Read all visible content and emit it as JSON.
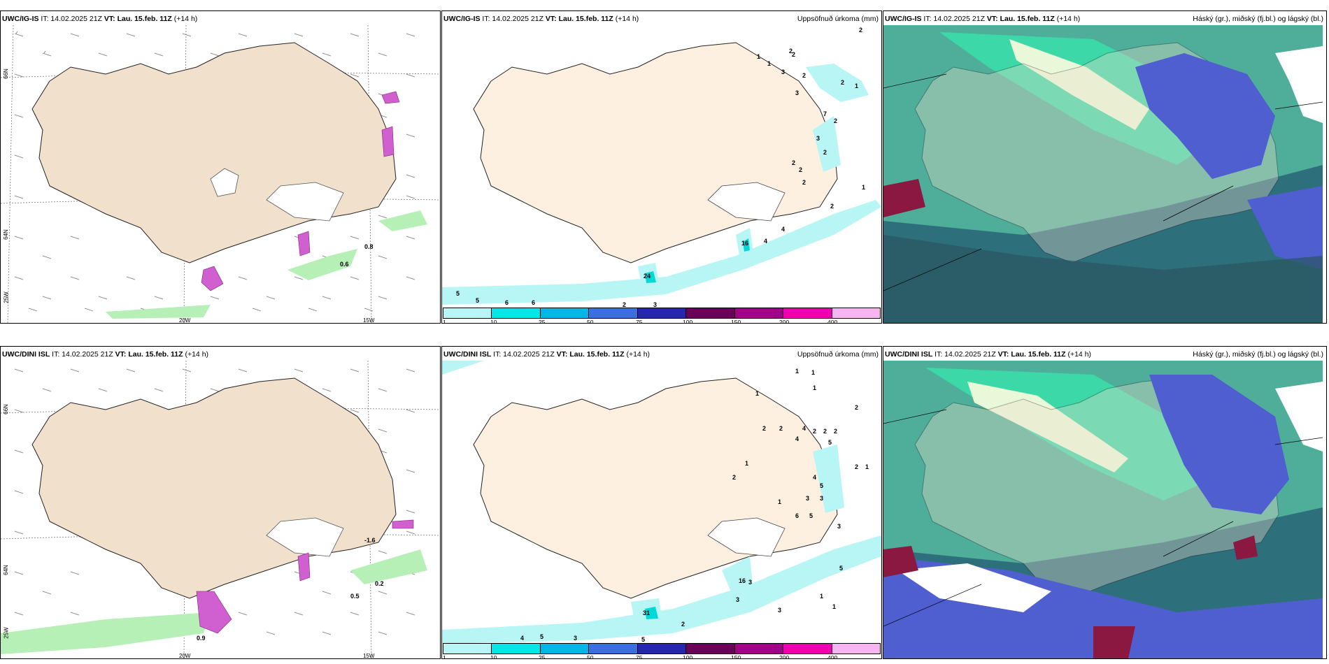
{
  "panels": {
    "top_left": {
      "model": "UWC/IG-IS",
      "it": "IT: 14.02.2025 21Z",
      "vt_label": "VT:",
      "vt": "Lau. 15.feb. 11Z",
      "lead": "(+14 h)",
      "product": ""
    },
    "top_mid": {
      "model": "UWC/IG-IS",
      "it": "IT: 14.02.2025 21Z",
      "vt_label": "VT:",
      "vt": "Lau. 15.feb. 11Z",
      "lead": "(+14 h)",
      "product": "Uppsöfnuð úrkoma (mm)"
    },
    "top_right": {
      "model": "UWC/IG-IS",
      "it": "IT: 14.02.2025 21Z",
      "vt_label": "VT:",
      "vt": "Lau. 15.feb. 11Z",
      "lead": "(+14 h)",
      "product": "Háský (gr.), miðský (fj.bl.) og lágský (bl.)"
    },
    "bottom_left": {
      "model": "UWC/DINI ISL",
      "it": "IT: 14.02.2025 21Z",
      "vt_label": "VT:",
      "vt": "Lau. 15.feb. 11Z",
      "lead": "(+14 h)",
      "product": ""
    },
    "bottom_mid": {
      "model": "UWC/DINI ISL",
      "it": "IT: 14.02.2025 21Z",
      "vt_label": "VT:",
      "vt": "Lau. 15.feb. 11Z",
      "lead": "(+14 h)",
      "product": "Uppsöfnuð úrkoma (mm)"
    },
    "bottom_right": {
      "model": "UWC/DINI ISL",
      "it": "IT: 14.02.2025 21Z",
      "vt_label": "VT:",
      "vt": "Lau. 15.feb. 11Z",
      "lead": "(+14 h)",
      "product": "Háský (gr.), miðský (fj.bl.) og lágský (bl.)"
    }
  },
  "axes": {
    "lon_20": "20W",
    "lon_15": "15W",
    "lat_66": "66N",
    "lat_64": "64N",
    "lon_25": "25W"
  },
  "values_top_left": [
    "0.8",
    "0.6"
  ],
  "values_bottom_left": [
    "-1.6",
    "0.2",
    "0.5",
    "0.9"
  ],
  "values_top_mid": [
    "2",
    "2",
    "1",
    "1",
    "2",
    "3",
    "2",
    "2",
    "1",
    "3",
    "7",
    "2",
    "3",
    "2",
    "2",
    "2",
    "2",
    "1",
    "2",
    "4",
    "4",
    "16",
    "24",
    "5",
    "5",
    "6",
    "6",
    "2",
    "3"
  ],
  "values_bottom_mid": [
    "1",
    "1",
    "1",
    "1",
    "2",
    "2",
    "2",
    "4",
    "2",
    "2",
    "2",
    "4",
    "5",
    "2",
    "1",
    "1",
    "2",
    "4",
    "5",
    "3",
    "3",
    "6",
    "5",
    "3",
    "1",
    "16",
    "31",
    "3",
    "3",
    "1",
    "5",
    "3",
    "2",
    "4",
    "5",
    "3",
    "5",
    "1"
  ],
  "legend": {
    "colors": [
      "#b8f5f5",
      "#00e5e5",
      "#00b7e8",
      "#3b6fe0",
      "#2626b0",
      "#6b0058",
      "#a3008a",
      "#f000b0",
      "#f6b4f0"
    ],
    "labels": [
      "1",
      "10",
      "25",
      "50",
      "75",
      "100",
      "150",
      "200",
      "400"
    ]
  },
  "colors": {
    "land": "#f5e6d3",
    "sea": "#ffffff",
    "precip_light": "#b8f5f5",
    "cloud_low": "#2e6f7c",
    "cloud_mid": "#4f5fd0",
    "cloud_high": "#3cd8a8"
  }
}
